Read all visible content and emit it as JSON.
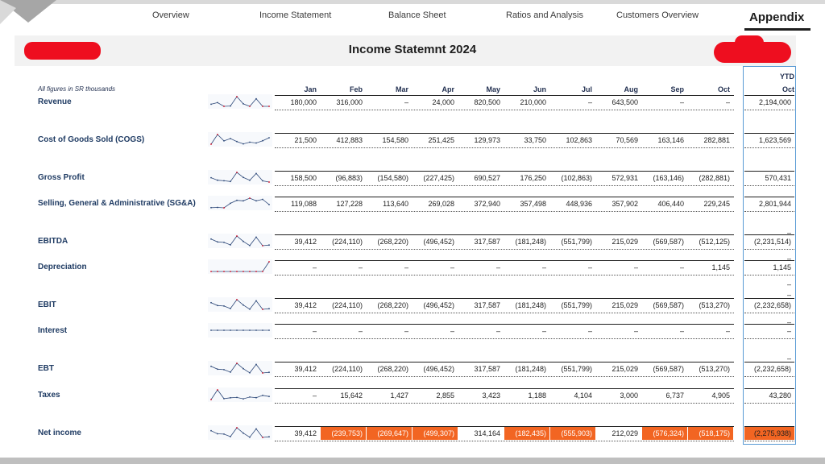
{
  "nav": {
    "tabs": [
      {
        "label": "Overview"
      },
      {
        "label": "Income Statement"
      },
      {
        "label": "Balance Sheet"
      },
      {
        "label": "Ratios and Analysis"
      },
      {
        "label": "Customers Overview"
      },
      {
        "label": "Appendix"
      }
    ]
  },
  "title": "Income Statemnt 2024",
  "note": "All figures in SR thousands",
  "months": [
    "Jan",
    "Feb",
    "Mar",
    "Apr",
    "May",
    "Jun",
    "Jul",
    "Aug",
    "Sep",
    "Oct"
  ],
  "ytd_header": {
    "line1": "YTD",
    "line2": "Oct"
  },
  "colors": {
    "accent": "#f26522",
    "ytd_border": "#5a9bd5",
    "redaction": "#ee0e1f",
    "label": "#1f3b63"
  },
  "rows": [
    {
      "label": "Revenue",
      "display": [
        "180,000",
        "316,000",
        "–",
        "24,000",
        "820,500",
        "210,000",
        "–",
        "643,500",
        "–",
        "–"
      ],
      "values": [
        180000,
        316000,
        0,
        24000,
        820500,
        210000,
        0,
        643500,
        0,
        0
      ],
      "ytd": "2,194,000"
    },
    {
      "label": "Cost of Goods Sold (COGS)",
      "display": [
        "21,500",
        "412,883",
        "154,580",
        "251,425",
        "129,973",
        "33,750",
        "102,863",
        "70,569",
        "163,146",
        "282,881"
      ],
      "values": [
        21500,
        412883,
        154580,
        251425,
        129973,
        33750,
        102863,
        70569,
        163146,
        282881
      ],
      "ytd": "1,623,569"
    },
    {
      "label": "Gross Profit",
      "display": [
        "158,500",
        "(96,883)",
        "(154,580)",
        "(227,425)",
        "690,527",
        "176,250",
        "(102,863)",
        "572,931",
        "(163,146)",
        "(282,881)"
      ],
      "values": [
        158500,
        -96883,
        -154580,
        -227425,
        690527,
        176250,
        -102863,
        572931,
        -163146,
        -282881
      ],
      "ytd": "570,431"
    },
    {
      "label": "Selling, General & Administrative (SG&A)",
      "display": [
        "119,088",
        "127,228",
        "113,640",
        "269,028",
        "372,940",
        "357,498",
        "448,936",
        "357,902",
        "406,440",
        "229,245"
      ],
      "values": [
        119088,
        127228,
        113640,
        269028,
        372940,
        357498,
        448936,
        357902,
        406440,
        229245
      ],
      "ytd": "2,801,944"
    },
    {
      "label": "EBITDA",
      "display": [
        "39,412",
        "(224,110)",
        "(268,220)",
        "(496,452)",
        "317,587",
        "(181,248)",
        "(551,799)",
        "215,029",
        "(569,587)",
        "(512,125)"
      ],
      "values": [
        39412,
        -224110,
        -268220,
        -496452,
        317587,
        -181248,
        -551799,
        215029,
        -569587,
        -512125
      ],
      "ytd": "(2,231,514)"
    },
    {
      "label": "Depreciation",
      "display": [
        "–",
        "–",
        "–",
        "–",
        "–",
        "–",
        "–",
        "–",
        "–",
        "1,145"
      ],
      "values": [
        0,
        0,
        0,
        0,
        0,
        0,
        0,
        0,
        0,
        1145
      ],
      "ytd": "1,145"
    },
    {
      "label": "EBIT",
      "display": [
        "39,412",
        "(224,110)",
        "(268,220)",
        "(496,452)",
        "317,587",
        "(181,248)",
        "(551,799)",
        "215,029",
        "(569,587)",
        "(513,270)"
      ],
      "values": [
        39412,
        -224110,
        -268220,
        -496452,
        317587,
        -181248,
        -551799,
        215029,
        -569587,
        -513270
      ],
      "ytd": "(2,232,658)"
    },
    {
      "label": "Interest",
      "display": [
        "–",
        "–",
        "–",
        "–",
        "–",
        "–",
        "–",
        "–",
        "–",
        "–"
      ],
      "values": [
        0,
        0,
        0,
        0,
        0,
        0,
        0,
        0,
        0,
        0
      ],
      "ytd": "–"
    },
    {
      "label": "EBT",
      "display": [
        "39,412",
        "(224,110)",
        "(268,220)",
        "(496,452)",
        "317,587",
        "(181,248)",
        "(551,799)",
        "215,029",
        "(569,587)",
        "(513,270)"
      ],
      "values": [
        39412,
        -224110,
        -268220,
        -496452,
        317587,
        -181248,
        -551799,
        215029,
        -569587,
        -513270
      ],
      "ytd": "(2,232,658)"
    },
    {
      "label": "Taxes",
      "display": [
        "–",
        "15,642",
        "1,427",
        "2,855",
        "3,423",
        "1,188",
        "4,104",
        "3,000",
        "6,737",
        "4,905"
      ],
      "values": [
        0,
        15642,
        1427,
        2855,
        3423,
        1188,
        4104,
        3000,
        6737,
        4905
      ],
      "ytd": "43,280"
    },
    {
      "label": "Net income",
      "display": [
        "39,412",
        "(239,753)",
        "(269,647)",
        "(499,307)",
        "314,164",
        "(182,435)",
        "(555,903)",
        "212,029",
        "(576,324)",
        "(518,175)"
      ],
      "values": [
        39412,
        -239753,
        -269647,
        -499307,
        314164,
        -182435,
        -555903,
        212029,
        -576324,
        -518175
      ],
      "ytd": "(2,275,938)"
    }
  ],
  "ytd_dashes": [
    "–",
    "–",
    "–",
    "–",
    "–",
    "–"
  ]
}
